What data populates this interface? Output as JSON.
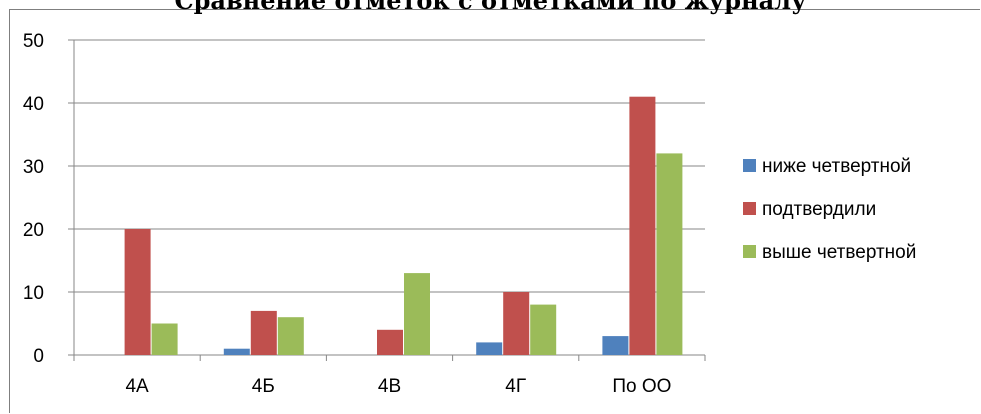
{
  "chart_data": {
    "type": "bar",
    "title": "Сравнение отметок с отметками по журналу",
    "xlabel": "",
    "ylabel": "",
    "categories": [
      "4А",
      "4Б",
      "4В",
      "4Г",
      "По ОО"
    ],
    "ylim": [
      0,
      50
    ],
    "yticks": [
      "0",
      "10",
      "20",
      "30",
      "40",
      "50"
    ],
    "grid": true,
    "legend_position": "right",
    "series": [
      {
        "name": "ниже четвертной",
        "color": "#4f81bd",
        "values": [
          0,
          1,
          0,
          2,
          3
        ]
      },
      {
        "name": "подтвердили",
        "color": "#c0504d",
        "values": [
          20,
          7,
          4,
          10,
          41
        ]
      },
      {
        "name": "выше четвертной",
        "color": "#9bbb59",
        "values": [
          5,
          6,
          13,
          8,
          32
        ]
      }
    ]
  }
}
